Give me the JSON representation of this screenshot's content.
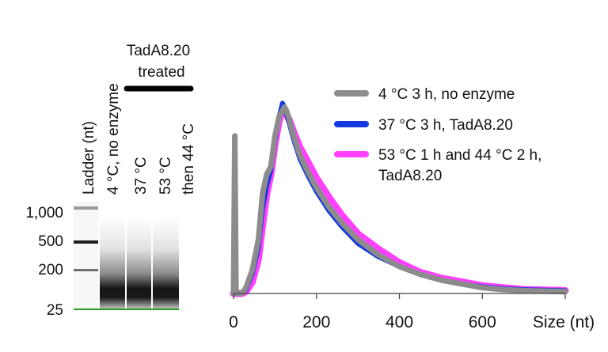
{
  "gel": {
    "treated_label_line1": "TadA8.20",
    "treated_label_line2": "treated",
    "lanes": [
      {
        "label": "Ladder (nt)"
      },
      {
        "label": "4 °C, no enzyme"
      },
      {
        "label": "37 °C"
      },
      {
        "label": "53 °C"
      },
      {
        "label": "then 44 °C"
      }
    ],
    "size_markers": [
      "1,000",
      "500",
      "200",
      "25"
    ]
  },
  "chart_data": {
    "type": "line",
    "title": "",
    "xlabel": "Size (nt)",
    "ylabel": "",
    "xlim": [
      0,
      800
    ],
    "ylim": [
      0,
      1.0
    ],
    "xticks": [
      0,
      200,
      400,
      600
    ],
    "xtick_labels": [
      "0",
      "200",
      "400",
      "600"
    ],
    "series": [
      {
        "name": "4 °C 3 h, no enzyme",
        "color": "#8c8c8c",
        "x": [
          0,
          3,
          6,
          10,
          20,
          30,
          45,
          60,
          70,
          80,
          90,
          100,
          110,
          118,
          123,
          128,
          135,
          145,
          160,
          180,
          200,
          230,
          260,
          300,
          350,
          400,
          450,
          500,
          550,
          600,
          650,
          700,
          800
        ],
        "y": [
          0.0,
          0.82,
          0.02,
          0.0,
          0.0,
          0.03,
          0.12,
          0.28,
          0.52,
          0.62,
          0.66,
          0.82,
          0.92,
          0.95,
          0.97,
          0.95,
          0.9,
          0.82,
          0.72,
          0.63,
          0.55,
          0.45,
          0.37,
          0.28,
          0.2,
          0.14,
          0.1,
          0.07,
          0.05,
          0.03,
          0.02,
          0.015,
          0.01
        ]
      },
      {
        "name": "37 °C 3 h, TadA8.20",
        "color": "#1538e0",
        "x": [
          0,
          10,
          20,
          30,
          45,
          60,
          70,
          80,
          90,
          100,
          110,
          118,
          123,
          128,
          135,
          145,
          160,
          180,
          200,
          230,
          260,
          300,
          350,
          400,
          450,
          500,
          550,
          600,
          650,
          700,
          800
        ],
        "y": [
          0.0,
          0.0,
          0.0,
          0.02,
          0.1,
          0.24,
          0.44,
          0.56,
          0.64,
          0.8,
          0.92,
          0.99,
          0.97,
          0.93,
          0.88,
          0.8,
          0.7,
          0.61,
          0.53,
          0.43,
          0.35,
          0.26,
          0.19,
          0.14,
          0.1,
          0.07,
          0.05,
          0.035,
          0.025,
          0.02,
          0.015
        ]
      },
      {
        "name": "53 °C 1 h and 44 °C 2 h, TadA8.20",
        "color": "#ff40ff",
        "x": [
          0,
          10,
          20,
          30,
          45,
          60,
          70,
          80,
          90,
          100,
          110,
          118,
          123,
          128,
          135,
          145,
          160,
          180,
          200,
          230,
          260,
          300,
          350,
          400,
          450,
          500,
          550,
          600,
          650,
          700,
          800
        ],
        "y": [
          0.0,
          0.0,
          0.0,
          0.01,
          0.06,
          0.18,
          0.36,
          0.52,
          0.62,
          0.78,
          0.9,
          0.96,
          0.95,
          0.93,
          0.9,
          0.84,
          0.76,
          0.68,
          0.6,
          0.5,
          0.41,
          0.31,
          0.23,
          0.16,
          0.11,
          0.08,
          0.06,
          0.04,
          0.03,
          0.02,
          0.015
        ]
      }
    ],
    "legend_position": "top-right"
  }
}
